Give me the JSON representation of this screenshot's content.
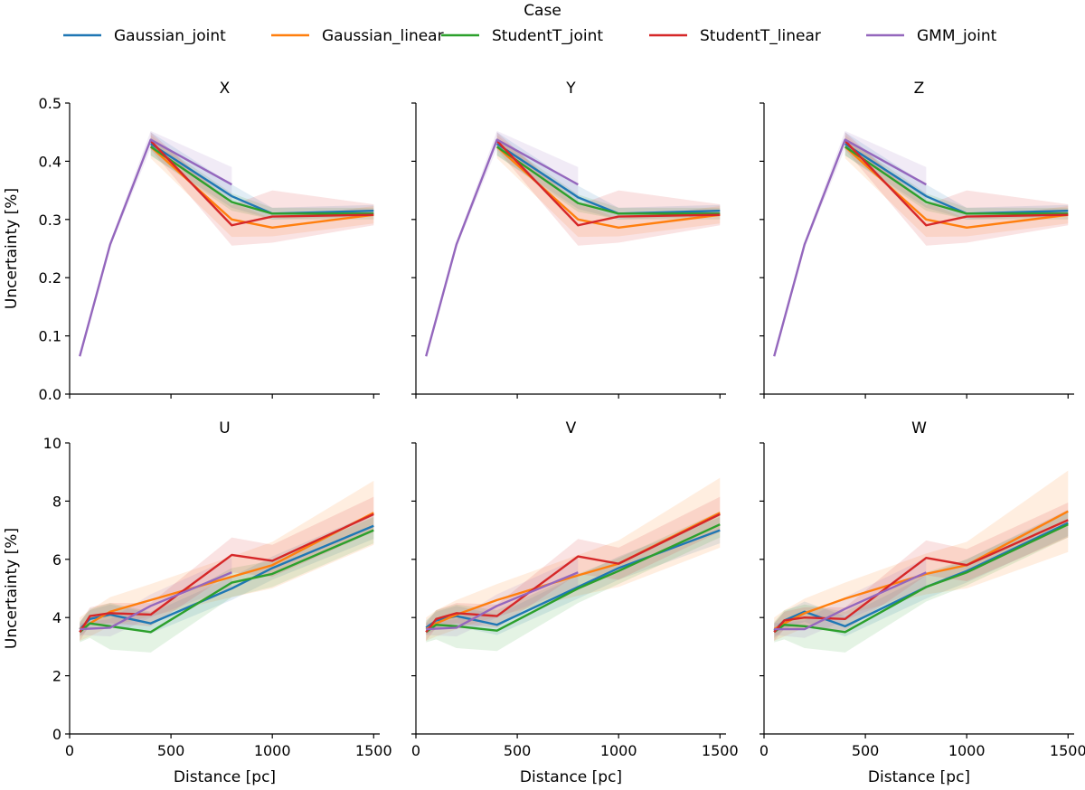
{
  "legend": {
    "title": "Case",
    "placement": "top-center",
    "entries": [
      {
        "name": "Gaussian_joint",
        "color": "#1f77b4"
      },
      {
        "name": "Gaussian_linear",
        "color": "#ff7f0e"
      },
      {
        "name": "StudentT_joint",
        "color": "#2ca02c"
      },
      {
        "name": "StudentT_linear",
        "color": "#d62728"
      },
      {
        "name": "GMM_joint",
        "color": "#9467bd"
      }
    ]
  },
  "chart_data": [
    {
      "type": "line",
      "title": "X",
      "xlabel": "",
      "ylabel": "Uncertainty [%]",
      "xlim": [
        0,
        1530
      ],
      "ylim": [
        0,
        0.5
      ],
      "xticks": [
        0,
        500,
        1000,
        1500
      ],
      "xticklabels": [
        "",
        "",
        "",
        ""
      ],
      "yticks": [
        0,
        0.1,
        0.2,
        0.3,
        0.4,
        0.5
      ],
      "yticklabels": [
        "0.0",
        "0.1",
        "0.2",
        "0.3",
        "0.4",
        "0.5"
      ],
      "series": [
        {
          "name": "Gaussian_joint",
          "x": [
            400,
            800,
            1000,
            1500
          ],
          "y": [
            0.43,
            0.34,
            0.31,
            0.315
          ],
          "band": [
            0.02,
            0.02,
            0.01,
            0.01
          ]
        },
        {
          "name": "Gaussian_linear",
          "x": [
            400,
            800,
            1000,
            1500
          ],
          "y": [
            0.425,
            0.3,
            0.286,
            0.308
          ],
          "band": [
            0.02,
            0.03,
            0.015,
            0.015
          ]
        },
        {
          "name": "StudentT_joint",
          "x": [
            400,
            800,
            1000,
            1500
          ],
          "y": [
            0.425,
            0.33,
            0.31,
            0.31
          ],
          "band": [
            0.015,
            0.015,
            0.01,
            0.01
          ]
        },
        {
          "name": "StudentT_linear",
          "x": [
            400,
            800,
            1000,
            1500
          ],
          "y": [
            0.435,
            0.29,
            0.305,
            0.308
          ],
          "band": [
            0.015,
            0.035,
            0.045,
            0.018
          ]
        },
        {
          "name": "GMM_joint",
          "x": [
            50,
            200,
            400,
            800
          ],
          "y": [
            0.065,
            0.257,
            0.437,
            0.36
          ],
          "band": [
            0.002,
            0.005,
            0.015,
            0.03
          ]
        }
      ]
    },
    {
      "type": "line",
      "title": "Y",
      "xlabel": "",
      "ylabel": "",
      "xlim": [
        0,
        1530
      ],
      "ylim": [
        0,
        0.5
      ],
      "xticks": [
        0,
        500,
        1000,
        1500
      ],
      "xticklabels": [
        "",
        "",
        "",
        ""
      ],
      "yticks": [
        0,
        0.1,
        0.2,
        0.3,
        0.4,
        0.5
      ],
      "yticklabels": [
        "",
        "",
        "",
        "",
        "",
        ""
      ],
      "series": [
        {
          "name": "Gaussian_joint",
          "x": [
            400,
            800,
            1000,
            1500
          ],
          "y": [
            0.43,
            0.338,
            0.31,
            0.315
          ],
          "band": [
            0.02,
            0.02,
            0.01,
            0.01
          ]
        },
        {
          "name": "Gaussian_linear",
          "x": [
            400,
            800,
            1000,
            1500
          ],
          "y": [
            0.425,
            0.3,
            0.286,
            0.308
          ],
          "band": [
            0.02,
            0.03,
            0.015,
            0.015
          ]
        },
        {
          "name": "StudentT_joint",
          "x": [
            400,
            800,
            1000,
            1500
          ],
          "y": [
            0.425,
            0.328,
            0.31,
            0.31
          ],
          "band": [
            0.015,
            0.015,
            0.01,
            0.01
          ]
        },
        {
          "name": "StudentT_linear",
          "x": [
            400,
            800,
            1000,
            1500
          ],
          "y": [
            0.435,
            0.29,
            0.305,
            0.308
          ],
          "band": [
            0.015,
            0.035,
            0.045,
            0.018
          ]
        },
        {
          "name": "GMM_joint",
          "x": [
            50,
            200,
            400,
            800
          ],
          "y": [
            0.065,
            0.257,
            0.437,
            0.36
          ],
          "band": [
            0.002,
            0.005,
            0.015,
            0.03
          ]
        }
      ]
    },
    {
      "type": "line",
      "title": "Z",
      "xlabel": "",
      "ylabel": "",
      "xlim": [
        0,
        1530
      ],
      "ylim": [
        0,
        0.5
      ],
      "xticks": [
        0,
        500,
        1000,
        1500
      ],
      "xticklabels": [
        "",
        "",
        "",
        ""
      ],
      "yticks": [
        0,
        0.1,
        0.2,
        0.3,
        0.4,
        0.5
      ],
      "yticklabels": [
        "",
        "",
        "",
        "",
        "",
        ""
      ],
      "series": [
        {
          "name": "Gaussian_joint",
          "x": [
            400,
            800,
            1000,
            1500
          ],
          "y": [
            0.43,
            0.34,
            0.31,
            0.315
          ],
          "band": [
            0.02,
            0.02,
            0.01,
            0.01
          ]
        },
        {
          "name": "Gaussian_linear",
          "x": [
            400,
            800,
            1000,
            1500
          ],
          "y": [
            0.425,
            0.3,
            0.286,
            0.308
          ],
          "band": [
            0.02,
            0.03,
            0.015,
            0.015
          ]
        },
        {
          "name": "StudentT_joint",
          "x": [
            400,
            800,
            1000,
            1500
          ],
          "y": [
            0.425,
            0.33,
            0.31,
            0.31
          ],
          "band": [
            0.015,
            0.015,
            0.01,
            0.01
          ]
        },
        {
          "name": "StudentT_linear",
          "x": [
            400,
            800,
            1000,
            1500
          ],
          "y": [
            0.435,
            0.29,
            0.305,
            0.308
          ],
          "band": [
            0.015,
            0.035,
            0.045,
            0.018
          ]
        },
        {
          "name": "GMM_joint",
          "x": [
            50,
            200,
            400,
            800
          ],
          "y": [
            0.065,
            0.257,
            0.437,
            0.36
          ],
          "band": [
            0.002,
            0.005,
            0.015,
            0.03
          ]
        }
      ]
    },
    {
      "type": "line",
      "title": "U",
      "xlabel": "Distance [pc]",
      "ylabel": "Uncertainty [%]",
      "xlim": [
        0,
        1530
      ],
      "ylim": [
        0,
        10
      ],
      "xticks": [
        0,
        500,
        1000,
        1500
      ],
      "xticklabels": [
        "0",
        "500",
        "1000",
        "1500"
      ],
      "yticks": [
        0,
        2,
        4,
        6,
        8,
        10
      ],
      "yticklabels": [
        "0",
        "2",
        "4",
        "6",
        "8",
        "10"
      ],
      "series": [
        {
          "name": "Gaussian_joint",
          "x": [
            50,
            100,
            200,
            400,
            800,
            1000,
            1500
          ],
          "y": [
            3.6,
            3.95,
            4.1,
            3.8,
            5.0,
            5.7,
            7.15
          ],
          "band": [
            0.25,
            0.3,
            0.35,
            0.35,
            0.4,
            0.4,
            0.45
          ]
        },
        {
          "name": "Gaussian_linear",
          "x": [
            50,
            100,
            200,
            400,
            800,
            1000,
            1500
          ],
          "y": [
            3.6,
            3.8,
            4.2,
            4.6,
            5.4,
            5.8,
            7.6
          ],
          "band": [
            0.4,
            0.45,
            0.5,
            0.55,
            0.7,
            0.8,
            1.1
          ]
        },
        {
          "name": "StudentT_joint",
          "x": [
            50,
            100,
            200,
            400,
            800,
            1000,
            1500
          ],
          "y": [
            3.5,
            3.8,
            3.7,
            3.5,
            5.2,
            5.5,
            7.0
          ],
          "band": [
            0.35,
            0.5,
            0.8,
            0.7,
            0.5,
            0.45,
            0.45
          ]
        },
        {
          "name": "StudentT_linear",
          "x": [
            50,
            100,
            200,
            400,
            800,
            1000,
            1500
          ],
          "y": [
            3.5,
            4.05,
            4.15,
            4.1,
            6.15,
            5.95,
            7.55
          ],
          "band": [
            0.3,
            0.3,
            0.35,
            0.4,
            0.6,
            0.55,
            0.6
          ]
        },
        {
          "name": "GMM_joint",
          "x": [
            50,
            200,
            400,
            800
          ],
          "y": [
            3.6,
            3.65,
            4.4,
            5.55
          ],
          "band": [
            0.2,
            0.3,
            0.4,
            0.5
          ]
        }
      ]
    },
    {
      "type": "line",
      "title": "V",
      "xlabel": "Distance [pc]",
      "ylabel": "",
      "xlim": [
        0,
        1530
      ],
      "ylim": [
        0,
        10
      ],
      "xticks": [
        0,
        500,
        1000,
        1500
      ],
      "xticklabels": [
        "0",
        "500",
        "1000",
        "1500"
      ],
      "yticks": [
        0,
        2,
        4,
        6,
        8,
        10
      ],
      "yticklabels": [
        "",
        "",
        "",
        "",
        "",
        ""
      ],
      "series": [
        {
          "name": "Gaussian_joint",
          "x": [
            50,
            100,
            200,
            400,
            800,
            1000,
            1500
          ],
          "y": [
            3.65,
            3.9,
            4.05,
            3.75,
            5.05,
            5.7,
            7.0
          ],
          "band": [
            0.25,
            0.3,
            0.35,
            0.35,
            0.4,
            0.4,
            0.45
          ]
        },
        {
          "name": "Gaussian_linear",
          "x": [
            50,
            100,
            200,
            400,
            800,
            1000,
            1500
          ],
          "y": [
            3.6,
            3.8,
            4.1,
            4.6,
            5.45,
            5.85,
            7.6
          ],
          "band": [
            0.4,
            0.45,
            0.5,
            0.55,
            0.7,
            0.8,
            1.2
          ]
        },
        {
          "name": "StudentT_joint",
          "x": [
            50,
            100,
            200,
            400,
            800,
            1000,
            1500
          ],
          "y": [
            3.5,
            3.75,
            3.7,
            3.55,
            5.0,
            5.6,
            7.2
          ],
          "band": [
            0.35,
            0.5,
            0.75,
            0.7,
            0.5,
            0.45,
            0.45
          ]
        },
        {
          "name": "StudentT_linear",
          "x": [
            50,
            100,
            200,
            400,
            800,
            1000,
            1500
          ],
          "y": [
            3.5,
            3.95,
            4.15,
            4.05,
            6.1,
            5.85,
            7.55
          ],
          "band": [
            0.3,
            0.3,
            0.35,
            0.4,
            0.6,
            0.55,
            0.6
          ]
        },
        {
          "name": "GMM_joint",
          "x": [
            50,
            200,
            400,
            800
          ],
          "y": [
            3.6,
            3.65,
            4.4,
            5.55
          ],
          "band": [
            0.2,
            0.3,
            0.4,
            0.5
          ]
        }
      ]
    },
    {
      "type": "line",
      "title": "W",
      "xlabel": "Distance [pc]",
      "ylabel": "",
      "xlim": [
        0,
        1530
      ],
      "ylim": [
        0,
        10
      ],
      "xticks": [
        0,
        500,
        1000,
        1500
      ],
      "xticklabels": [
        "0",
        "500",
        "1000",
        "1500"
      ],
      "yticks": [
        0,
        2,
        4,
        6,
        8,
        10
      ],
      "yticklabels": [
        "",
        "",
        "",
        "",
        "",
        ""
      ],
      "series": [
        {
          "name": "Gaussian_joint",
          "x": [
            50,
            100,
            200,
            400,
            800,
            1000,
            1500
          ],
          "y": [
            3.55,
            3.9,
            4.2,
            3.7,
            5.05,
            5.6,
            7.25
          ],
          "band": [
            0.25,
            0.3,
            0.35,
            0.35,
            0.4,
            0.4,
            0.45
          ]
        },
        {
          "name": "Gaussian_linear",
          "x": [
            50,
            100,
            200,
            400,
            800,
            1000,
            1500
          ],
          "y": [
            3.6,
            3.8,
            4.15,
            4.65,
            5.5,
            5.8,
            7.65
          ],
          "band": [
            0.4,
            0.45,
            0.5,
            0.55,
            0.7,
            0.8,
            1.4
          ]
        },
        {
          "name": "StudentT_joint",
          "x": [
            50,
            100,
            200,
            400,
            800,
            1000,
            1500
          ],
          "y": [
            3.5,
            3.75,
            3.7,
            3.5,
            5.05,
            5.55,
            7.2
          ],
          "band": [
            0.35,
            0.5,
            0.75,
            0.7,
            0.5,
            0.45,
            0.45
          ]
        },
        {
          "name": "StudentT_linear",
          "x": [
            50,
            100,
            200,
            400,
            800,
            1000,
            1500
          ],
          "y": [
            3.5,
            3.9,
            4.0,
            3.95,
            6.05,
            5.8,
            7.35
          ],
          "band": [
            0.3,
            0.3,
            0.35,
            0.4,
            0.6,
            0.55,
            0.6
          ]
        },
        {
          "name": "GMM_joint",
          "x": [
            50,
            200,
            400,
            800
          ],
          "y": [
            3.6,
            3.6,
            4.3,
            5.55
          ],
          "band": [
            0.2,
            0.3,
            0.4,
            0.5
          ]
        }
      ]
    }
  ]
}
